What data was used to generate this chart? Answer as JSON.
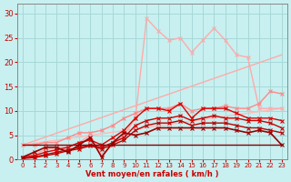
{
  "bg_color": "#c8f0f0",
  "grid_color": "#a8d8d8",
  "xlabel": "Vent moyen/en rafales ( km/h )",
  "xlabel_color": "#cc0000",
  "tick_color": "#cc0000",
  "axis_color": "#888888",
  "xlim": [
    -0.5,
    23.5
  ],
  "ylim": [
    0,
    32
  ],
  "yticks": [
    0,
    5,
    10,
    15,
    20,
    25,
    30
  ],
  "xticks": [
    0,
    1,
    2,
    3,
    4,
    5,
    6,
    7,
    8,
    9,
    10,
    11,
    12,
    13,
    14,
    15,
    16,
    17,
    18,
    19,
    20,
    21,
    22,
    23
  ],
  "series": [
    {
      "x": [
        0,
        23
      ],
      "y": [
        3.0,
        21.5
      ],
      "color": "#ffaaaa",
      "lw": 1.0,
      "marker": null,
      "ms": 0
    },
    {
      "x": [
        0,
        23
      ],
      "y": [
        3.0,
        10.5
      ],
      "color": "#ffbbbb",
      "lw": 1.0,
      "marker": null,
      "ms": 0
    },
    {
      "x": [
        0,
        1,
        2,
        3,
        4,
        5,
        6,
        7,
        8,
        9,
        10,
        11,
        12,
        13,
        14,
        15,
        16,
        17,
        18,
        19,
        20,
        21,
        22,
        23
      ],
      "y": [
        0.5,
        1.0,
        2.0,
        2.5,
        2.5,
        3.5,
        5.0,
        1.0,
        3.0,
        5.0,
        8.5,
        29.0,
        26.5,
        24.5,
        25.0,
        22.0,
        24.5,
        27.0,
        24.5,
        21.5,
        21.0,
        10.5,
        10.5,
        10.5
      ],
      "color": "#ffaaaa",
      "lw": 1.0,
      "marker": "x",
      "ms": 3
    },
    {
      "x": [
        0,
        1,
        2,
        3,
        4,
        5,
        6,
        7,
        8,
        9,
        10,
        11,
        12,
        13,
        14,
        15,
        16,
        17,
        18,
        19,
        20,
        21,
        22,
        23
      ],
      "y": [
        3.0,
        3.0,
        3.5,
        3.5,
        4.5,
        5.5,
        5.5,
        6.0,
        7.0,
        8.5,
        9.5,
        10.5,
        10.5,
        10.5,
        11.5,
        10.0,
        10.5,
        10.5,
        11.0,
        10.5,
        10.5,
        11.5,
        14.0,
        13.5
      ],
      "color": "#ff8888",
      "lw": 1.0,
      "marker": "x",
      "ms": 3
    },
    {
      "x": [
        0,
        1,
        2,
        3,
        4,
        5,
        6,
        7,
        8,
        9,
        10,
        11,
        12,
        13,
        14,
        15,
        16,
        17,
        18,
        19,
        20,
        21,
        22,
        23
      ],
      "y": [
        0.5,
        0.8,
        1.5,
        2.0,
        2.5,
        3.5,
        4.0,
        3.0,
        4.5,
        6.0,
        8.5,
        10.5,
        10.5,
        10.0,
        11.5,
        8.5,
        10.5,
        10.5,
        10.5,
        9.5,
        8.5,
        8.5,
        8.5,
        8.0
      ],
      "color": "#dd0000",
      "lw": 1.0,
      "marker": "x",
      "ms": 3
    },
    {
      "x": [
        0,
        1,
        2,
        3,
        4,
        5,
        6,
        7,
        8,
        9,
        10,
        11,
        12,
        13,
        14,
        15,
        16,
        17,
        18,
        19,
        20,
        21,
        22,
        23
      ],
      "y": [
        0.3,
        0.5,
        1.0,
        1.5,
        2.0,
        2.5,
        3.0,
        2.5,
        3.5,
        4.5,
        7.0,
        8.0,
        8.5,
        8.5,
        9.0,
        8.0,
        8.5,
        9.0,
        8.5,
        8.5,
        8.0,
        8.0,
        7.5,
        6.5
      ],
      "color": "#cc0000",
      "lw": 1.0,
      "marker": "x",
      "ms": 3
    },
    {
      "x": [
        0,
        1,
        2,
        3,
        4,
        5,
        6,
        7,
        8,
        9,
        10,
        11,
        12,
        13,
        14,
        15,
        16,
        17,
        18,
        19,
        20,
        21,
        22,
        23
      ],
      "y": [
        0.2,
        0.4,
        0.8,
        1.2,
        1.8,
        2.2,
        2.8,
        2.2,
        3.0,
        4.0,
        6.0,
        7.0,
        7.5,
        7.5,
        8.0,
        7.0,
        7.5,
        7.5,
        7.5,
        7.0,
        6.5,
        6.5,
        6.0,
        5.5
      ],
      "color": "#bb0000",
      "lw": 1.0,
      "marker": "x",
      "ms": 3
    },
    {
      "x": [
        0,
        1,
        2,
        3,
        4,
        5,
        6,
        7,
        8,
        9,
        10,
        11,
        12,
        13,
        14,
        15,
        16,
        17,
        18,
        19,
        20,
        21,
        22,
        23
      ],
      "y": [
        0.5,
        1.5,
        2.5,
        2.5,
        1.5,
        3.0,
        4.5,
        0.5,
        3.5,
        5.5,
        5.0,
        5.5,
        6.5,
        6.5,
        6.5,
        6.5,
        6.5,
        6.5,
        6.5,
        6.0,
        5.5,
        6.0,
        5.5,
        3.0
      ],
      "color": "#990000",
      "lw": 1.2,
      "marker": "x",
      "ms": 3
    },
    {
      "x": [
        0,
        23
      ],
      "y": [
        3.0,
        3.0
      ],
      "color": "#880000",
      "lw": 1.0,
      "marker": null,
      "ms": 0
    }
  ]
}
